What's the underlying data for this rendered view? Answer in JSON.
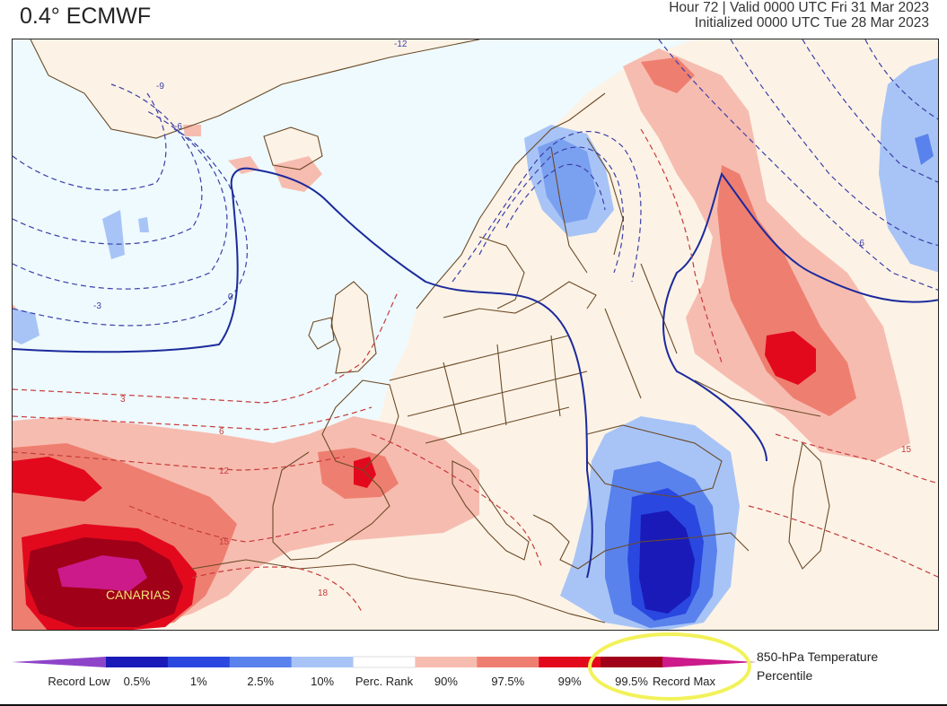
{
  "header": {
    "title": "0.4° ECMWF",
    "valid": "Hour 72 | Valid 0000 UTC Fri 31 Mar 2023",
    "init": "Initialized 0000 UTC Tue 28 Mar 2023"
  },
  "map": {
    "place_label": "CANARIAS",
    "contour_labels": [
      "-12",
      "-9",
      "-6",
      "-3",
      "0",
      "3",
      "6",
      "12",
      "15",
      "18"
    ]
  },
  "colorbar": {
    "title_line1": "850-hPa Temperature",
    "title_line2": "Percentile",
    "labels": [
      "Record Low",
      "0.5%",
      "1%",
      "2.5%",
      "10%",
      "Perc. Rank",
      "90%",
      "97.5%",
      "99%",
      "99.5%",
      "Record Max"
    ],
    "colors": [
      "#8e44c9",
      "#1a1ab8",
      "#2a48e0",
      "#5a82ec",
      "#a8c4f6",
      "#ffffff",
      "#f7bcb0",
      "#ee7f70",
      "#e3091d",
      "#a00018",
      "#cc1a8a"
    ]
  },
  "annotation": {
    "highlight_color": "#f2f25a"
  }
}
